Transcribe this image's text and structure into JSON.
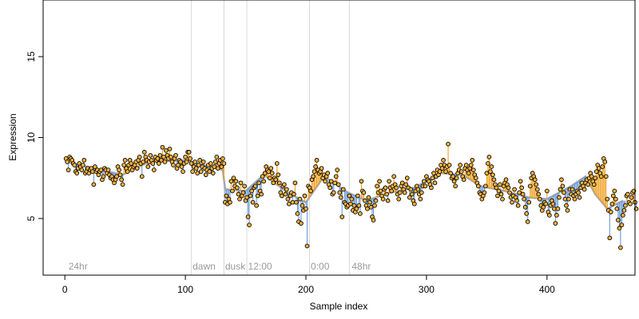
{
  "chart_data": {
    "type": "scatter",
    "title": "",
    "xlabel": "Sample index",
    "ylabel": "Expression",
    "xlim": [
      -18,
      473
    ],
    "ylim": [
      1.5,
      18.5
    ],
    "x_ticks": [
      0,
      100,
      200,
      300,
      400
    ],
    "y_ticks": [
      5,
      10,
      15
    ],
    "grid": false,
    "colors": {
      "point_fill": "#f5b13d",
      "point_stroke": "#000000",
      "fit_line": "#a8a8a8",
      "residual_up": "#f0a020",
      "residual_down": "#6a9ad8",
      "vline": "#d9d9d9",
      "annotation": "#9a9a9a"
    },
    "annotations": [
      {
        "label": "24hr",
        "x": 3
      },
      {
        "label": "dawn",
        "x": 106
      },
      {
        "label": "dusk",
        "x": 133
      },
      {
        "label": "12:00",
        "x": 152
      },
      {
        "label": "0:00",
        "x": 204
      },
      {
        "label": "48hr",
        "x": 238
      }
    ],
    "vlines": [
      105,
      132,
      151,
      203,
      236
    ],
    "series": [
      {
        "x_start": 1,
        "values": [
          8.7,
          8.5,
          8.0,
          8.8,
          8.7,
          8.6,
          8.4,
          8.3,
          7.9,
          7.8,
          8.1,
          8.4,
          8.2,
          8.0,
          8.3,
          8.6,
          7.8,
          7.9,
          8.1,
          7.8,
          8.0,
          8.1,
          7.9,
          7.1,
          8.2,
          7.9,
          8.0,
          7.7,
          7.9,
          8.0,
          7.4,
          7.6,
          8.1,
          8.0,
          7.8,
          8.0,
          7.7,
          7.5,
          7.6,
          7.4,
          7.2,
          7.4,
          7.6,
          8.2,
          8.0,
          7.7,
          7.4,
          7.1,
          8.3,
          8.6,
          8.1,
          7.9,
          8.3,
          8.6,
          8.4,
          8.0,
          8.2,
          8.3,
          8.5,
          8.1,
          8.6,
          8.8,
          8.4,
          7.6,
          8.5,
          9.1,
          8.8,
          8.6,
          8.2,
          8.5,
          8.9,
          8.6,
          8.4,
          8.0,
          8.8,
          8.6,
          8.7,
          8.4,
          8.9,
          8.6,
          9.4,
          8.8,
          8.5,
          9.2,
          8.9,
          8.7,
          9.3,
          8.8,
          8.5,
          8.3,
          8.7,
          8.9,
          8.1,
          8.3,
          8.6,
          8.5,
          8.2,
          7.9,
          8.4,
          8.8,
          8.5,
          9.1,
          9.1,
          8.7,
          8.4,
          7.9,
          8.2,
          8.5,
          8.1,
          7.8,
          8.3,
          8.6,
          7.9,
          8.2,
          8.5,
          8.1,
          7.7,
          8.0,
          8.3,
          7.9,
          8.4,
          8.1,
          7.8,
          8.2,
          8.5,
          8.8,
          8.1,
          8.4,
          8.6,
          8.2,
          8.7,
          8.4,
          6.0,
          6.4,
          5.9,
          6.2,
          6.0,
          7.3,
          6.7,
          7.5,
          7.0,
          7.3,
          6.9,
          6.5,
          6.2,
          7.2,
          6.4,
          6.6,
          7.0,
          6.1,
          6.3,
          5.1,
          4.6,
          6.4,
          6.7,
          6.0,
          6.9,
          7.0,
          5.8,
          6.4,
          7.2,
          6.7,
          6.5,
          7.6,
          7.3,
          7.8,
          8.2,
          8.0,
          7.9,
          7.5,
          8.1,
          7.8,
          7.2,
          7.5,
          7.4,
          8.4,
          7.7,
          7.2,
          6.6,
          6.4,
          7.0,
          7.1,
          6.5,
          6.8,
          6.2,
          5.9,
          6.4,
          6.6,
          6.0,
          6.5,
          7.2,
          6.0,
          5.3,
          4.8,
          6.2,
          4.7,
          5.8,
          5.5,
          6.4,
          5.6,
          3.3,
          7.0,
          6.9,
          6.7,
          7.4,
          7.6,
          7.9,
          8.2,
          8.6,
          8.0,
          7.8,
          7.9,
          8.1,
          7.5,
          7.7,
          7.3,
          7.6,
          7.8,
          7.1,
          6.9,
          7.3,
          6.5,
          6.6,
          7.2,
          7.6,
          8.0,
          7.1,
          6.6,
          6.3,
          5.1,
          6.8,
          6.0,
          5.9,
          5.7,
          5.8,
          6.4,
          5.9,
          6.2,
          5.5,
          5.8,
          5.4,
          5.6,
          6.4,
          5.8,
          5.3,
          7.3,
          6.7,
          6.6,
          6.1,
          5.8,
          5.6,
          6.3,
          6.0,
          5.7,
          5.1,
          4.9,
          5.8,
          6.1,
          7.0,
          6.6,
          7.3,
          6.7,
          6.4,
          6.2,
          6.8,
          6.9,
          6.5,
          6.1,
          7.3,
          6.9,
          6.7,
          7.0,
          7.6,
          7.1,
          6.9,
          6.5,
          6.2,
          6.6,
          7.0,
          7.2,
          6.8,
          6.6,
          7.1,
          7.5,
          6.9,
          6.3,
          6.8,
          6.5,
          6.1,
          5.9,
          6.7,
          7.0,
          6.8,
          6.5,
          6.2,
          6.6,
          7.0,
          7.3,
          7.0,
          7.6,
          7.4,
          7.3,
          7.1,
          6.9,
          7.5,
          7.8,
          7.2,
          7.6,
          8.0,
          7.7,
          7.9,
          8.3,
          8.1,
          8.6,
          8.3,
          7.9,
          8.2,
          9.6,
          8.3,
          7.8,
          7.5,
          7.6,
          7.3,
          7.0,
          7.5,
          7.8,
          8.0,
          8.3,
          7.9,
          7.6,
          7.4,
          8.1,
          8.3,
          8.0,
          7.8,
          8.1,
          8.3,
          8.6,
          8.0,
          7.7,
          7.5,
          7.2,
          7.0,
          6.6,
          6.5,
          6.2,
          6.4,
          6.6,
          7.0,
          7.8,
          8.4,
          8.8,
          7.9,
          8.2,
          7.7,
          7.4,
          7.1,
          6.9,
          6.4,
          6.7,
          7.1,
          6.5,
          6.2,
          7.0,
          7.2,
          7.4,
          7.1,
          6.9,
          6.6,
          6.3,
          6.0,
          6.4,
          6.8,
          6.3,
          6.1,
          5.8,
          6.6,
          7.3,
          6.9,
          6.5,
          6.2,
          5.7,
          5.3,
          4.8,
          6.0,
          7.0,
          7.5,
          7.8,
          7.6,
          7.4,
          7.1,
          6.8,
          6.5,
          6.2,
          5.8,
          5.5,
          5.7,
          6.0,
          5.9,
          6.7,
          5.4,
          5.2,
          5.8,
          6.1,
          5.9,
          5.6,
          4.7,
          5.2,
          5.6,
          6.3,
          6.8,
          7.4,
          7.0,
          6.6,
          6.2,
          5.8,
          5.5,
          6.2,
          6.8,
          6.5,
          6.8,
          6.4,
          6.2,
          6.5,
          6.7,
          6.6,
          6.3,
          6.9,
          7.2,
          7.0,
          6.8,
          7.2,
          7.4,
          7.1,
          7.5,
          7.8,
          7.6,
          7.3,
          7.1,
          7.5,
          7.9,
          8.3,
          8.1,
          7.8,
          7.6,
          8.2,
          8.7,
          8.5,
          7.6,
          6.2,
          5.5,
          3.8,
          5.4,
          5.9,
          6.4,
          6.7,
          6.2,
          5.6,
          4.9,
          4.4,
          3.2,
          4.6,
          5.2,
          5.5,
          5.8,
          6.4,
          6.5,
          6.0,
          5.9,
          6.3,
          6.6,
          6.7,
          6.0,
          5.6
        ]
      }
    ],
    "fit": [
      {
        "x": 1,
        "y": 8.5
      },
      {
        "x": 30,
        "y": 8.0
      },
      {
        "x": 48,
        "y": 7.7
      },
      {
        "x": 70,
        "y": 8.5
      },
      {
        "x": 100,
        "y": 8.6
      },
      {
        "x": 131,
        "y": 8.0
      },
      {
        "x": 133,
        "y": 6.8
      },
      {
        "x": 150,
        "y": 6.7
      },
      {
        "x": 165,
        "y": 7.7
      },
      {
        "x": 185,
        "y": 6.6
      },
      {
        "x": 200,
        "y": 6.0
      },
      {
        "x": 215,
        "y": 7.6
      },
      {
        "x": 235,
        "y": 6.6
      },
      {
        "x": 250,
        "y": 6.1
      },
      {
        "x": 270,
        "y": 6.6
      },
      {
        "x": 290,
        "y": 6.9
      },
      {
        "x": 312,
        "y": 7.8
      },
      {
        "x": 330,
        "y": 7.7
      },
      {
        "x": 345,
        "y": 7.0
      },
      {
        "x": 365,
        "y": 6.7
      },
      {
        "x": 385,
        "y": 6.3
      },
      {
        "x": 400,
        "y": 6.2
      },
      {
        "x": 420,
        "y": 7.0
      },
      {
        "x": 432,
        "y": 7.6
      },
      {
        "x": 440,
        "y": 6.5
      },
      {
        "x": 450,
        "y": 5.6
      },
      {
        "x": 463,
        "y": 6.1
      }
    ]
  }
}
